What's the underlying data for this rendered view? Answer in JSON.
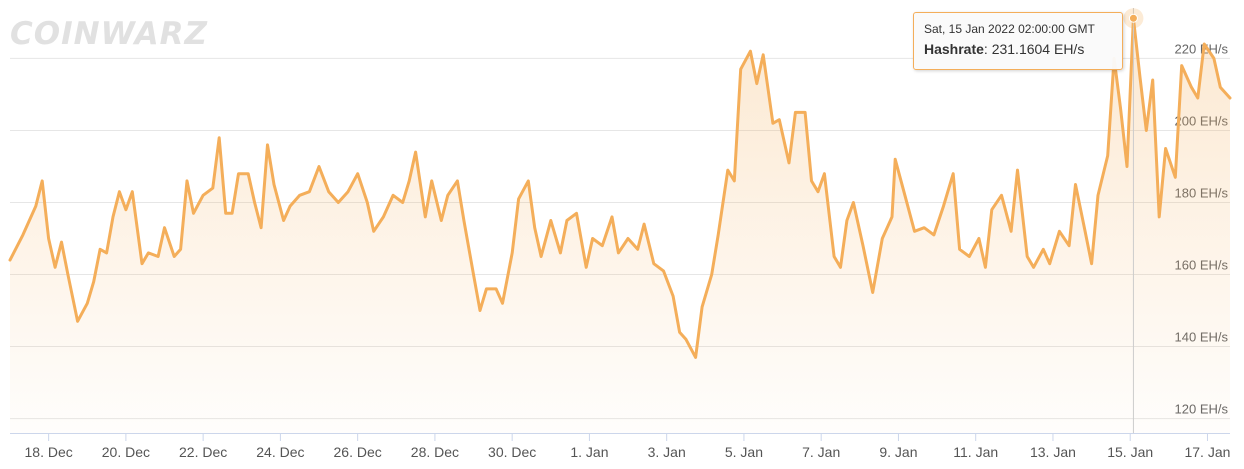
{
  "watermark": "COINWARZ",
  "tooltip": {
    "date": "Sat, 15 Jan 2022 02:00:00 GMT",
    "series_label": "Hashrate",
    "value": "231.1604 EH/s"
  },
  "colors": {
    "line": "#f4ae5a",
    "marker": "#f4ae5a",
    "grid": "#e6e6e6",
    "axis": "#ccd6eb"
  },
  "chart_data": {
    "type": "area",
    "title": "",
    "xlabel": "",
    "ylabel": "",
    "unit": "EH/s",
    "grid": true,
    "legend": "none",
    "ylim": [
      116,
      234
    ],
    "x_ticks": [
      "18. Dec",
      "20. Dec",
      "22. Dec",
      "24. Dec",
      "26. Dec",
      "28. Dec",
      "30. Dec",
      "1. Jan",
      "3. Jan",
      "5. Jan",
      "7. Jan",
      "9. Jan",
      "11. Jan",
      "13. Jan",
      "15. Jan",
      "17. Jan"
    ],
    "y_ticks": [
      {
        "value": 120,
        "label": "120 EH/s"
      },
      {
        "value": 140,
        "label": "140 EH/s"
      },
      {
        "value": 160,
        "label": "160 EH/s"
      },
      {
        "value": 180,
        "label": "180 EH/s"
      },
      {
        "value": 200,
        "label": "200 EH/s"
      },
      {
        "value": 220,
        "label": "220 EH/s"
      }
    ],
    "x_start": "2021-12-17",
    "x_end": "2022-01-17 14:00",
    "highlight": {
      "x": "2022-01-15 02:00",
      "y": 231.1604
    },
    "series": [
      {
        "name": "Hashrate",
        "points": [
          [
            "2021-12-17 00:00",
            164
          ],
          [
            "2021-12-17 08:00",
            171
          ],
          [
            "2021-12-17 16:00",
            179
          ],
          [
            "2021-12-17 20:00",
            186
          ],
          [
            "2021-12-18 00:00",
            170
          ],
          [
            "2021-12-18 04:00",
            162
          ],
          [
            "2021-12-18 08:00",
            169
          ],
          [
            "2021-12-18 12:00",
            160
          ],
          [
            "2021-12-18 18:00",
            147
          ],
          [
            "2021-12-19 00:00",
            152
          ],
          [
            "2021-12-19 04:00",
            158
          ],
          [
            "2021-12-19 08:00",
            167
          ],
          [
            "2021-12-19 12:00",
            166
          ],
          [
            "2021-12-19 16:00",
            176
          ],
          [
            "2021-12-19 20:00",
            183
          ],
          [
            "2021-12-20 00:00",
            178
          ],
          [
            "2021-12-20 04:00",
            183
          ],
          [
            "2021-12-20 10:00",
            163
          ],
          [
            "2021-12-20 14:00",
            166
          ],
          [
            "2021-12-20 20:00",
            165
          ],
          [
            "2021-12-21 00:00",
            173
          ],
          [
            "2021-12-21 06:00",
            165
          ],
          [
            "2021-12-21 10:00",
            167
          ],
          [
            "2021-12-21 14:00",
            186
          ],
          [
            "2021-12-21 18:00",
            177
          ],
          [
            "2021-12-22 00:00",
            182
          ],
          [
            "2021-12-22 06:00",
            184
          ],
          [
            "2021-12-22 10:00",
            198
          ],
          [
            "2021-12-22 14:00",
            177
          ],
          [
            "2021-12-22 18:00",
            177
          ],
          [
            "2021-12-22 22:00",
            188
          ],
          [
            "2021-12-23 04:00",
            188
          ],
          [
            "2021-12-23 08:00",
            180
          ],
          [
            "2021-12-23 12:00",
            173
          ],
          [
            "2021-12-23 16:00",
            196
          ],
          [
            "2021-12-23 20:00",
            185
          ],
          [
            "2021-12-24 02:00",
            175
          ],
          [
            "2021-12-24 06:00",
            179
          ],
          [
            "2021-12-24 12:00",
            182
          ],
          [
            "2021-12-24 18:00",
            183
          ],
          [
            "2021-12-25 00:00",
            190
          ],
          [
            "2021-12-25 06:00",
            183
          ],
          [
            "2021-12-25 12:00",
            180
          ],
          [
            "2021-12-25 18:00",
            183
          ],
          [
            "2021-12-26 00:00",
            188
          ],
          [
            "2021-12-26 06:00",
            180
          ],
          [
            "2021-12-26 10:00",
            172
          ],
          [
            "2021-12-26 16:00",
            176
          ],
          [
            "2021-12-26 22:00",
            182
          ],
          [
            "2021-12-27 04:00",
            180
          ],
          [
            "2021-12-27 08:00",
            186
          ],
          [
            "2021-12-27 12:00",
            194
          ],
          [
            "2021-12-27 18:00",
            176
          ],
          [
            "2021-12-27 22:00",
            186
          ],
          [
            "2021-12-28 04:00",
            175
          ],
          [
            "2021-12-28 08:00",
            182
          ],
          [
            "2021-12-28 14:00",
            186
          ],
          [
            "2021-12-28 18:00",
            175
          ],
          [
            "2021-12-29 00:00",
            160
          ],
          [
            "2021-12-29 04:00",
            150
          ],
          [
            "2021-12-29 08:00",
            156
          ],
          [
            "2021-12-29 14:00",
            156
          ],
          [
            "2021-12-29 18:00",
            152
          ],
          [
            "2021-12-30 00:00",
            166
          ],
          [
            "2021-12-30 04:00",
            181
          ],
          [
            "2021-12-30 10:00",
            186
          ],
          [
            "2021-12-30 14:00",
            173
          ],
          [
            "2021-12-30 18:00",
            165
          ],
          [
            "2021-12-31 00:00",
            175
          ],
          [
            "2021-12-31 06:00",
            166
          ],
          [
            "2021-12-31 10:00",
            175
          ],
          [
            "2021-12-31 16:00",
            177
          ],
          [
            "2021-12-31 22:00",
            162
          ],
          [
            "2022-01-01 02:00",
            170
          ],
          [
            "2022-01-01 08:00",
            168
          ],
          [
            "2022-01-01 14:00",
            176
          ],
          [
            "2022-01-01 18:00",
            166
          ],
          [
            "2022-01-02 00:00",
            170
          ],
          [
            "2022-01-02 06:00",
            167
          ],
          [
            "2022-01-02 10:00",
            174
          ],
          [
            "2022-01-02 16:00",
            163
          ],
          [
            "2022-01-02 22:00",
            161
          ],
          [
            "2022-01-03 04:00",
            154
          ],
          [
            "2022-01-03 08:00",
            144
          ],
          [
            "2022-01-03 12:00",
            142
          ],
          [
            "2022-01-03 18:00",
            137
          ],
          [
            "2022-01-03 22:00",
            151
          ],
          [
            "2022-01-04 04:00",
            160
          ],
          [
            "2022-01-04 08:00",
            171
          ],
          [
            "2022-01-04 14:00",
            189
          ],
          [
            "2022-01-04 18:00",
            186
          ],
          [
            "2022-01-04 22:00",
            217
          ],
          [
            "2022-01-05 04:00",
            222
          ],
          [
            "2022-01-05 08:00",
            213
          ],
          [
            "2022-01-05 12:00",
            221
          ],
          [
            "2022-01-05 18:00",
            202
          ],
          [
            "2022-01-05 22:00",
            203
          ],
          [
            "2022-01-06 04:00",
            191
          ],
          [
            "2022-01-06 08:00",
            205
          ],
          [
            "2022-01-06 14:00",
            205
          ],
          [
            "2022-01-06 18:00",
            186
          ],
          [
            "2022-01-06 22:00",
            183
          ],
          [
            "2022-01-07 02:00",
            188
          ],
          [
            "2022-01-07 08:00",
            165
          ],
          [
            "2022-01-07 12:00",
            162
          ],
          [
            "2022-01-07 16:00",
            175
          ],
          [
            "2022-01-07 20:00",
            180
          ],
          [
            "2022-01-08 02:00",
            168
          ],
          [
            "2022-01-08 08:00",
            155
          ],
          [
            "2022-01-08 14:00",
            170
          ],
          [
            "2022-01-08 20:00",
            176
          ],
          [
            "2022-01-08 22:00",
            192
          ],
          [
            "2022-01-09 04:00",
            182
          ],
          [
            "2022-01-09 10:00",
            172
          ],
          [
            "2022-01-09 16:00",
            173
          ],
          [
            "2022-01-09 22:00",
            171
          ],
          [
            "2022-01-10 04:00",
            179
          ],
          [
            "2022-01-10 10:00",
            188
          ],
          [
            "2022-01-10 14:00",
            167
          ],
          [
            "2022-01-10 20:00",
            165
          ],
          [
            "2022-01-11 02:00",
            170
          ],
          [
            "2022-01-11 06:00",
            162
          ],
          [
            "2022-01-11 10:00",
            178
          ],
          [
            "2022-01-11 16:00",
            182
          ],
          [
            "2022-01-11 22:00",
            172
          ],
          [
            "2022-01-12 02:00",
            189
          ],
          [
            "2022-01-12 08:00",
            165
          ],
          [
            "2022-01-12 12:00",
            162
          ],
          [
            "2022-01-12 18:00",
            167
          ],
          [
            "2022-01-12 22:00",
            163
          ],
          [
            "2022-01-13 04:00",
            172
          ],
          [
            "2022-01-13 10:00",
            168
          ],
          [
            "2022-01-13 14:00",
            185
          ],
          [
            "2022-01-13 20:00",
            172
          ],
          [
            "2022-01-14 00:00",
            163
          ],
          [
            "2022-01-14 04:00",
            182
          ],
          [
            "2022-01-14 10:00",
            193
          ],
          [
            "2022-01-14 14:00",
            220
          ],
          [
            "2022-01-14 18:00",
            206
          ],
          [
            "2022-01-14 22:00",
            190
          ],
          [
            "2022-01-15 02:00",
            231.1604
          ],
          [
            "2022-01-15 06:00",
            215
          ],
          [
            "2022-01-15 10:00",
            200
          ],
          [
            "2022-01-15 14:00",
            214
          ],
          [
            "2022-01-15 18:00",
            176
          ],
          [
            "2022-01-15 22:00",
            195
          ],
          [
            "2022-01-16 04:00",
            187
          ],
          [
            "2022-01-16 08:00",
            218
          ],
          [
            "2022-01-16 14:00",
            212
          ],
          [
            "2022-01-16 18:00",
            209
          ],
          [
            "2022-01-16 22:00",
            224
          ],
          [
            "2022-01-17 04:00",
            220
          ],
          [
            "2022-01-17 08:00",
            212
          ],
          [
            "2022-01-17 14:00",
            209
          ]
        ]
      }
    ]
  }
}
